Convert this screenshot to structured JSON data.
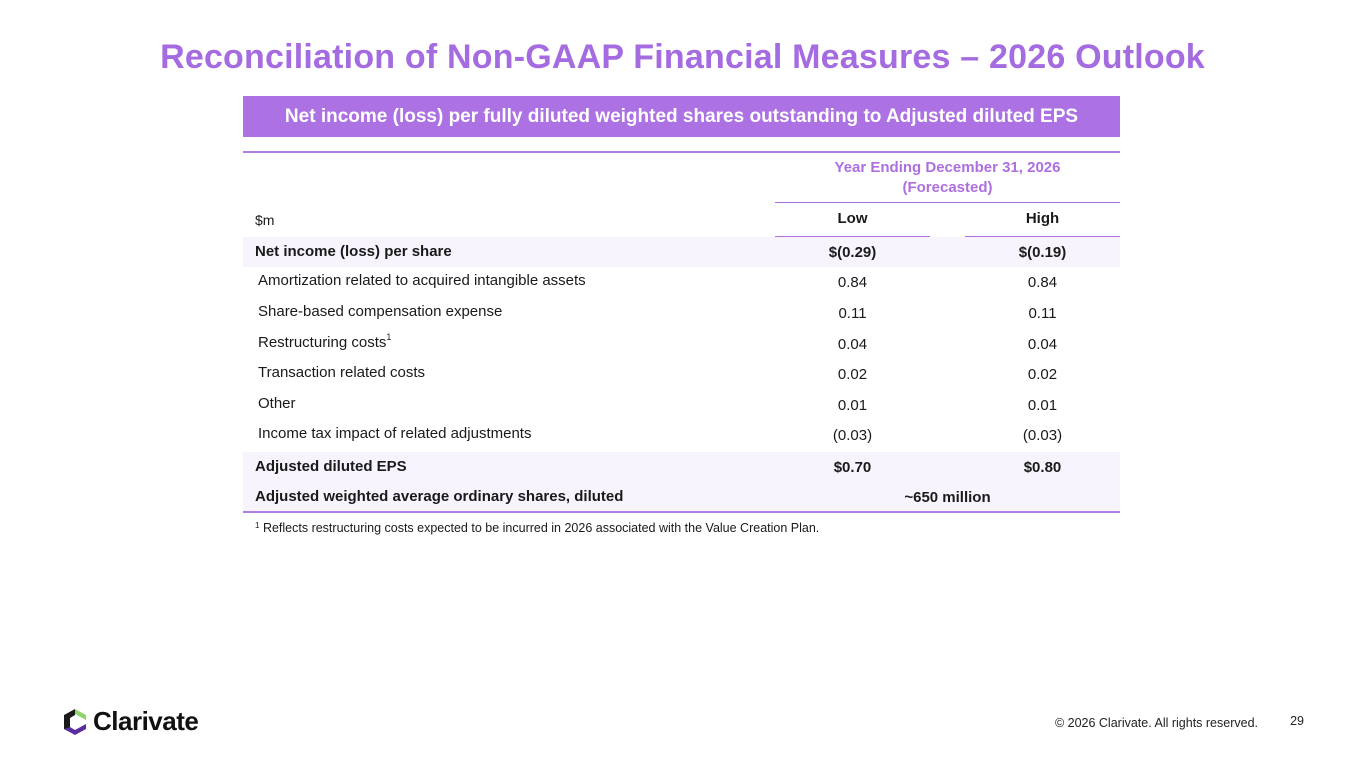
{
  "title": "Reconciliation of Non-GAAP Financial Measures – 2026 Outlook",
  "banner": "Net income (loss) per fully diluted weighted shares outstanding to Adjusted diluted EPS",
  "table": {
    "period_header_line1": "Year Ending December 31, 2026",
    "period_header_line2": "(Forecasted)",
    "unit_label": "$m",
    "col_low": "Low",
    "col_high": "High",
    "rows": [
      {
        "label": "Net income (loss) per share",
        "low": "$(0.29)",
        "high": "$(0.19)"
      },
      {
        "label": "Amortization related to acquired intangible assets",
        "low": "0.84",
        "high": "0.84"
      },
      {
        "label": "Share-based compensation expense",
        "low": "0.11",
        "high": "0.11"
      },
      {
        "label": "Restructuring costs",
        "superscript": "1",
        "low": "0.04",
        "high": "0.04"
      },
      {
        "label": "Transaction related costs",
        "low": "0.02",
        "high": "0.02"
      },
      {
        "label": "Other",
        "low": "0.01",
        "high": "0.01"
      },
      {
        "label": "Income tax impact of related adjustments",
        "low": "(0.03)",
        "high": "(0.03)"
      },
      {
        "label": "Adjusted diluted EPS",
        "low": "$0.70",
        "high": "$0.80"
      },
      {
        "label": "Adjusted weighted average ordinary shares, diluted",
        "combined": "~650 million"
      }
    ]
  },
  "footnote": {
    "marker": "1",
    "text": "Reflects restructuring costs expected to be incurred in 2026 associated with the Value Creation Plan."
  },
  "footer": {
    "logo_text": "Clarivate",
    "copyright": "© 2026 Clarivate. All rights reserved.",
    "page_number": "29"
  },
  "colors": {
    "accent": "#ac71e3",
    "title": "#a56be0",
    "row_shade": "#f8f4fd"
  }
}
